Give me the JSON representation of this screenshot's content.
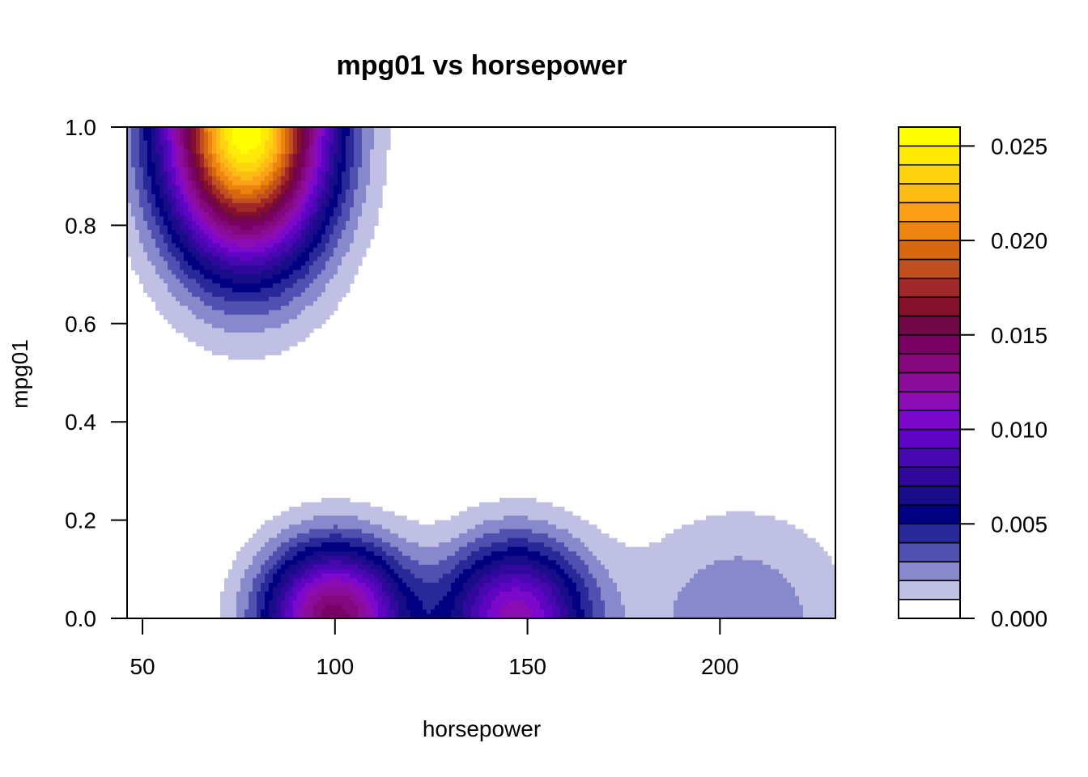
{
  "chart_data": {
    "type": "heatmap",
    "subtype": "filled-contour",
    "title": "mpg01 vs horsepower",
    "xlabel": "horsepower",
    "ylabel": "mpg01",
    "xlim": [
      46,
      230
    ],
    "ylim": [
      0,
      1
    ],
    "x_ticks": [
      50,
      100,
      150,
      200
    ],
    "x_tick_labels": [
      "50",
      "100",
      "150",
      "200"
    ],
    "y_ticks": [
      0,
      0.2,
      0.4,
      0.6,
      0.8,
      1.0
    ],
    "y_tick_labels": [
      "0.0",
      "0.2",
      "0.4",
      "0.6",
      "0.8",
      "1.0"
    ],
    "legend_position": "right",
    "colorbar": {
      "min": 0,
      "max": 0.026,
      "step": 0.001,
      "ticks": [
        0,
        0.005,
        0.01,
        0.015,
        0.02,
        0.025
      ],
      "tick_labels": [
        "0.000",
        "0.005",
        "0.010",
        "0.015",
        "0.020",
        "0.025"
      ]
    },
    "density_peaks": [
      {
        "horsepower": 77,
        "mpg01": 1.0,
        "density": 0.026,
        "sx": 14.5,
        "sy": 0.185
      },
      {
        "horsepower": 100,
        "mpg01": 0.0,
        "density": 0.0145,
        "sx": 13,
        "sy": 0.105
      },
      {
        "horsepower": 147,
        "mpg01": 0.0,
        "density": 0.0115,
        "sx": 13,
        "sy": 0.11
      },
      {
        "horsepower": 205,
        "mpg01": 0.0,
        "density": 0.0028,
        "sx": 20,
        "sy": 0.15
      }
    ],
    "palette": [
      "#ffffff",
      "#c0c0e4",
      "#8888cc",
      "#5050b0",
      "#282898",
      "#000080",
      "#180c88",
      "#30089c",
      "#4808b0",
      "#6004c4",
      "#7c08cc",
      "#8c0cb4",
      "#8a0c98",
      "#82087c",
      "#7a0064",
      "#700848",
      "#84102c",
      "#a02828",
      "#c05020",
      "#d86810",
      "#ec8410",
      "#fba018",
      "#fcbc14",
      "#fed410",
      "#ffea08",
      "#ffff00"
    ]
  }
}
